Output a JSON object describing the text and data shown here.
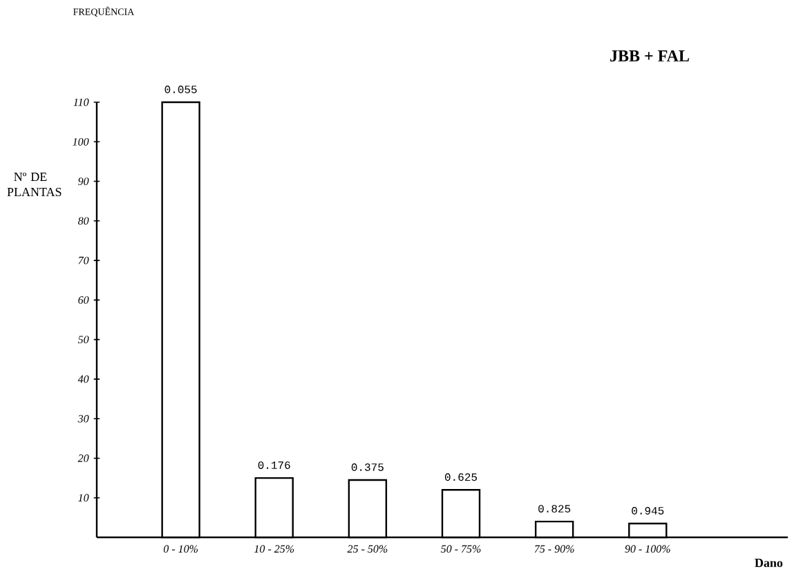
{
  "chart_data": {
    "type": "bar",
    "title": "JBB + FAL",
    "xlabel": "Dano",
    "ylabel": "Nº DE PLANTAS",
    "annotations": [
      "FREQUÊNCIA",
      {
        "text": "0.055",
        "x": "0 - 10%",
        "y": 110
      },
      {
        "text": "0.176",
        "x": "10 - 25%",
        "y": 15
      },
      {
        "text": "0.375",
        "x": "25 - 50%",
        "y": 14.5
      },
      {
        "text": "0.625",
        "x": "50 - 75%",
        "y": 12
      },
      {
        "text": "0.825",
        "x": "75 - 90%",
        "y": 4
      },
      {
        "text": "0.945",
        "x": "90 - 100%",
        "y": 3.5
      }
    ],
    "categories": [
      "0 - 10%",
      "10 - 25%",
      "25 - 50%",
      "50 - 75%",
      "75 - 90%",
      "90 - 100%"
    ],
    "values": [
      110,
      15,
      14.5,
      12,
      4,
      3.5
    ],
    "color": "#ffffff",
    "ylim": [
      0,
      110
    ],
    "yticks": [
      10,
      20,
      30,
      40,
      50,
      60,
      70,
      80,
      90,
      100,
      110
    ],
    "grid": false
  }
}
